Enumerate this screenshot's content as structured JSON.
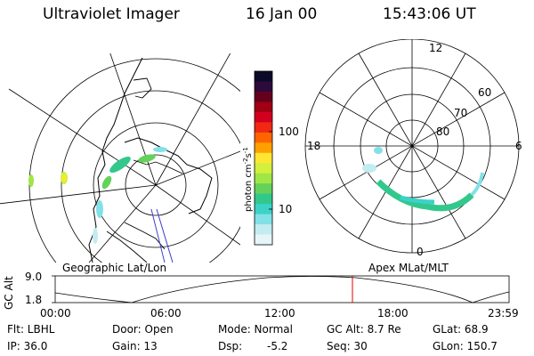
{
  "header": {
    "instrument": "Ultraviolet Imager",
    "date": "16 Jan 00",
    "time": "15:43:06 UT"
  },
  "left_map": {
    "caption": "Geographic Lat/Lon"
  },
  "right_map": {
    "caption": "Apex MLat/MLT",
    "mlt_labels": {
      "top": "12",
      "left": "18",
      "right": "6",
      "bottom": "0"
    },
    "lat_labels": [
      "60",
      "70",
      "80"
    ]
  },
  "colorbar": {
    "label_main": "photon cm",
    "label_sup1": "-2",
    "label_mid": "s",
    "label_sup2": "-1",
    "ticks": [
      "100",
      "10"
    ],
    "colors": [
      "#0a0a28",
      "#2d0a3c",
      "#64001e",
      "#a00014",
      "#d2001e",
      "#f02814",
      "#ff6400",
      "#ffa000",
      "#ffe632",
      "#d2f03c",
      "#a0e646",
      "#64d25a",
      "#32c88c",
      "#3cd2c8",
      "#82e1e6",
      "#c3ecf0",
      "#e6f5f8"
    ]
  },
  "timeline": {
    "ylabel": "GC Alt",
    "y_top": "9.0",
    "y_bottom": "1.8",
    "x_ticks": [
      "00:00",
      "06:00",
      "12:00",
      "18:00",
      "23:59"
    ]
  },
  "footer": {
    "row1": {
      "flt": "Flt: LBHL",
      "door": "Door: Open",
      "mode": "Mode: Normal",
      "gc_alt": "GC Alt: 8.7 Re",
      "glat": "GLat:  68.9"
    },
    "row2": {
      "ip": "IP: 36.0",
      "gain": "Gain: 13",
      "dsp_label": "Dsp:",
      "dsp_value": "-5.2",
      "seq": "Seq: 30",
      "glon": "GLon: 150.7"
    }
  }
}
